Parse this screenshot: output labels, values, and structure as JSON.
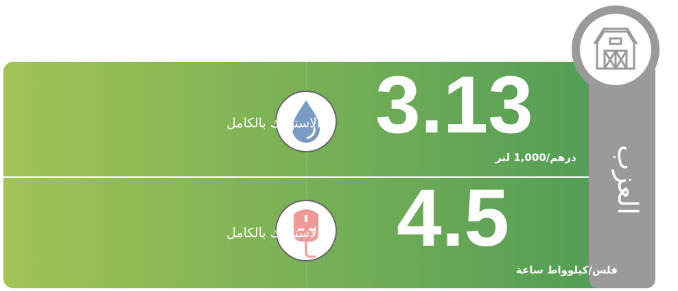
{
  "category": "العزب",
  "rows": [
    {
      "value": "3.13",
      "unit": "درهم/1,000 لتر",
      "label": "الاستهلاك بالكامل"
    },
    {
      "value": "4.5",
      "unit": "فلس/كيلوواط ساعة",
      "label": "الاستهلاك بالكامل"
    }
  ]
}
